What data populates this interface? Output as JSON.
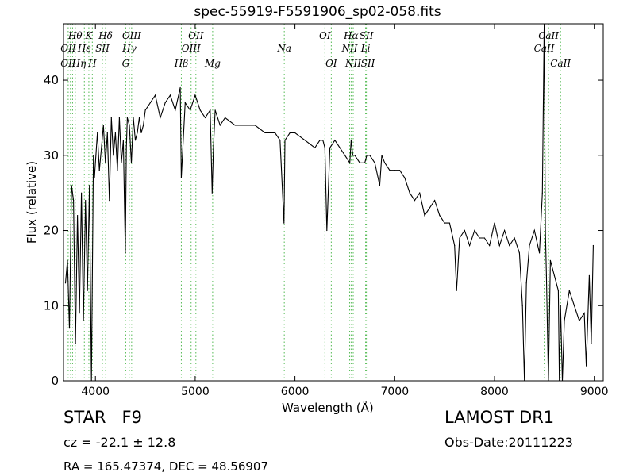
{
  "chart_data": {
    "type": "line",
    "title": "spec-55919-F5591906_sp02-058.fits",
    "xlabel": "Wavelength (Å)",
    "ylabel": "Flux (relative)",
    "xlim": [
      3680,
      9090
    ],
    "ylim": [
      0,
      47.5
    ],
    "xticks": [
      "4000",
      "5000",
      "6000",
      "7000",
      "8000",
      "9000"
    ],
    "yticks": [
      "0",
      "10",
      "20",
      "30",
      "40"
    ],
    "grid": false,
    "series": [
      {
        "x": [
          3700,
          3720,
          3740,
          3760,
          3780,
          3800,
          3820,
          3840,
          3860,
          3880,
          3900,
          3920,
          3940,
          3960,
          3980,
          3990,
          4000,
          4020,
          4040,
          4060,
          4080,
          4100,
          4120,
          4140,
          4160,
          4180,
          4200,
          4220,
          4240,
          4260,
          4280,
          4300,
          4310,
          4320,
          4340,
          4360,
          4380,
          4400,
          4420,
          4440,
          4460,
          4480,
          4500,
          4550,
          4600,
          4650,
          4700,
          4750,
          4800,
          4850,
          4861,
          4900,
          4950,
          5000,
          5050,
          5100,
          5150,
          5170,
          5183,
          5200,
          5250,
          5300,
          5400,
          5500,
          5600,
          5700,
          5800,
          5850,
          5890,
          5900,
          5950,
          6000,
          6100,
          6200,
          6250,
          6280,
          6300,
          6320,
          6350,
          6400,
          6450,
          6500,
          6550,
          6563,
          6580,
          6600,
          6650,
          6700,
          6720,
          6750,
          6800,
          6850,
          6870,
          6900,
          6950,
          7000,
          7050,
          7100,
          7150,
          7200,
          7250,
          7300,
          7350,
          7400,
          7450,
          7500,
          7550,
          7600,
          7620,
          7650,
          7700,
          7750,
          7800,
          7850,
          7900,
          7950,
          8000,
          8050,
          8100,
          8150,
          8200,
          8250,
          8280,
          8300,
          8320,
          8350,
          8400,
          8450,
          8480,
          8498,
          8510,
          8520,
          8540,
          8560,
          8600,
          8640,
          8650,
          8662,
          8680,
          8700,
          8750,
          8800,
          8850,
          8900,
          8920,
          8950,
          8970,
          8990
        ],
        "y": [
          13,
          16,
          7,
          26,
          24,
          5,
          22,
          9,
          25,
          8,
          24,
          12,
          26,
          0,
          30,
          27,
          29,
          33,
          28,
          31,
          34,
          29,
          33,
          24,
          35,
          30,
          33,
          28,
          35,
          29,
          32,
          17,
          31,
          35,
          34,
          29,
          35,
          32,
          33,
          35,
          33,
          34,
          36,
          37,
          38,
          35,
          37,
          38,
          36,
          39,
          27,
          37,
          36,
          38,
          36,
          35,
          36,
          25,
          31,
          36,
          34,
          35,
          34,
          34,
          34,
          33,
          33,
          32,
          21,
          32,
          33,
          33,
          32,
          31,
          32,
          32,
          31,
          20,
          31,
          32,
          31,
          30,
          29,
          32,
          30,
          30,
          29,
          29,
          30,
          30,
          29,
          26,
          30,
          29,
          28,
          28,
          28,
          27,
          25,
          24,
          25,
          22,
          23,
          24,
          22,
          21,
          21,
          18,
          12,
          19,
          20,
          18,
          20,
          19,
          19,
          18,
          21,
          18,
          20,
          18,
          19,
          17,
          10,
          0,
          13,
          18,
          20,
          17,
          25,
          47.5,
          20,
          14,
          0,
          16,
          14,
          12,
          0,
          10,
          0,
          8,
          12,
          10,
          8,
          9,
          2,
          14,
          5,
          18
        ]
      }
    ],
    "annotations": [
      {
        "text": "OII",
        "x": 3727,
        "tier": 1
      },
      {
        "text": "Hθ",
        "x": 3798,
        "tier": 0
      },
      {
        "text": "OII",
        "x": 3727,
        "tier": 2
      },
      {
        "text": "Hη",
        "x": 3835,
        "tier": 2
      },
      {
        "text": "K",
        "x": 3934,
        "tier": 0
      },
      {
        "text": "Hε",
        "x": 3889,
        "tier": 1
      },
      {
        "text": "SII",
        "x": 4070,
        "tier": 1
      },
      {
        "text": "H",
        "x": 3969,
        "tier": 2
      },
      {
        "text": "Hδ",
        "x": 4102,
        "tier": 0
      },
      {
        "text": "OIII",
        "x": 4363,
        "tier": 0
      },
      {
        "text": "Hγ",
        "x": 4340,
        "tier": 1
      },
      {
        "text": "G",
        "x": 4304,
        "tier": 2
      },
      {
        "text": "OII",
        "x": 5007,
        "tier": 0
      },
      {
        "text": "OIII",
        "x": 4959,
        "tier": 1
      },
      {
        "text": "Hβ",
        "x": 4861,
        "tier": 2
      },
      {
        "text": "Mg",
        "x": 5175,
        "tier": 2
      },
      {
        "text": "Na",
        "x": 5893,
        "tier": 1
      },
      {
        "text": "OI",
        "x": 6300,
        "tier": 0
      },
      {
        "text": "OI",
        "x": 6364,
        "tier": 2
      },
      {
        "text": "Hα",
        "x": 6563,
        "tier": 0
      },
      {
        "text": "SII",
        "x": 6716,
        "tier": 0
      },
      {
        "text": "NII",
        "x": 6548,
        "tier": 1
      },
      {
        "text": "Li",
        "x": 6708,
        "tier": 1
      },
      {
        "text": "NII",
        "x": 6584,
        "tier": 2
      },
      {
        "text": "SII",
        "x": 6731,
        "tier": 2
      },
      {
        "text": "CaII",
        "x": 8542,
        "tier": 0
      },
      {
        "text": "CaII",
        "x": 8498,
        "tier": 1
      },
      {
        "text": "CaII",
        "x": 8662,
        "tier": 2
      }
    ],
    "line_markers": [
      3727,
      3750,
      3771,
      3798,
      3835,
      3889,
      3934,
      3969,
      4070,
      4102,
      4304,
      4340,
      4363,
      4861,
      4959,
      5007,
      5175,
      5893,
      6300,
      6364,
      6548,
      6563,
      6584,
      6708,
      6716,
      6731,
      8498,
      8542,
      8662
    ]
  },
  "info": {
    "object_class": "STAR",
    "subclass": "F9",
    "redshift": "cz = -22.1 ± 12.8",
    "coords": "RA = 165.47374, DEC = 48.56907",
    "survey": "LAMOST DR1",
    "obs_date": "Obs-Date:20111223"
  },
  "colors": {
    "line": "#000000",
    "marker": "#55bb55",
    "background": "#ffffff"
  }
}
